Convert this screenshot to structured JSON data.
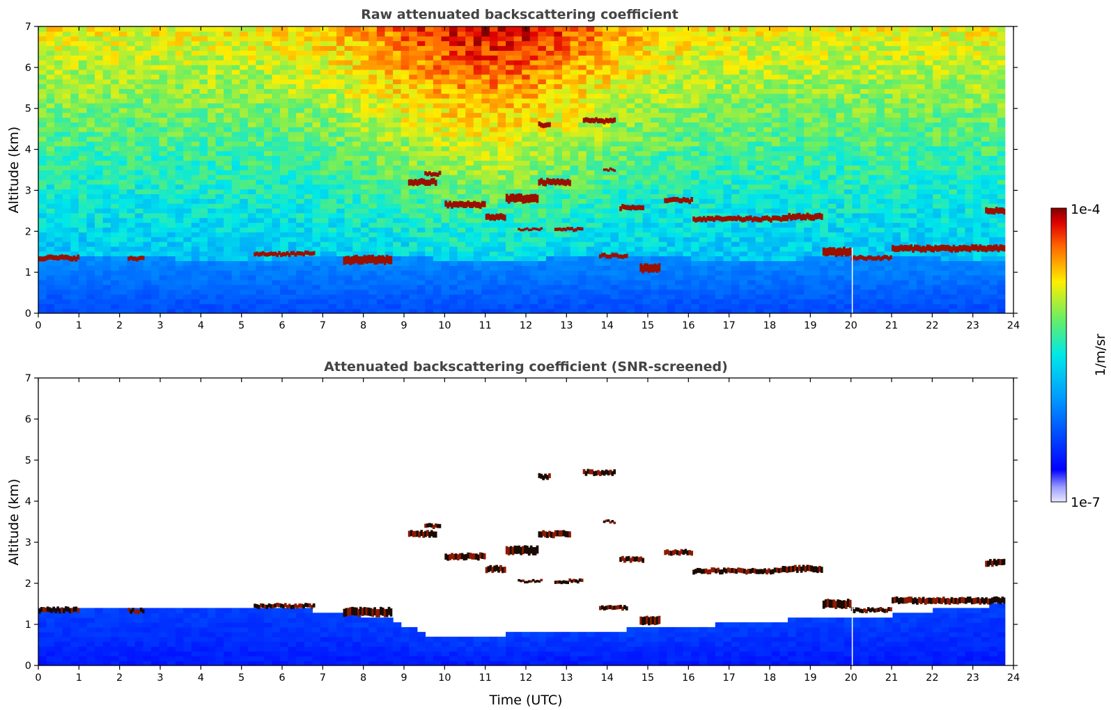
{
  "chart_data": [
    {
      "type": "heatmap",
      "title": "Raw attenuated backscattering coefficient",
      "xlabel": "",
      "ylabel": "Altitude (km)",
      "xlim": [
        0,
        24
      ],
      "ylim": [
        0,
        7
      ],
      "xticks": [
        "0",
        "1",
        "2",
        "3",
        "4",
        "5",
        "6",
        "7",
        "8",
        "9",
        "10",
        "11",
        "12",
        "13",
        "14",
        "15",
        "16",
        "17",
        "18",
        "19",
        "20",
        "21",
        "22",
        "23",
        "24"
      ],
      "yticks": [
        "0",
        "1",
        "2",
        "3",
        "4",
        "5",
        "6",
        "7"
      ],
      "screened": false,
      "cloud_layers": [
        {
          "t0": 0.0,
          "t1": 1.0,
          "alt": 1.35,
          "th": 0.12
        },
        {
          "t0": 2.2,
          "t1": 2.6,
          "alt": 1.33,
          "th": 0.1
        },
        {
          "t0": 5.3,
          "t1": 6.8,
          "alt": 1.45,
          "th": 0.1
        },
        {
          "t0": 7.5,
          "t1": 8.7,
          "alt": 1.3,
          "th": 0.2
        },
        {
          "t0": 9.1,
          "t1": 9.8,
          "alt": 3.2,
          "th": 0.15
        },
        {
          "t0": 9.5,
          "t1": 9.9,
          "alt": 3.4,
          "th": 0.1
        },
        {
          "t0": 10.0,
          "t1": 11.0,
          "alt": 2.65,
          "th": 0.15
        },
        {
          "t0": 11.0,
          "t1": 11.5,
          "alt": 2.35,
          "th": 0.15
        },
        {
          "t0": 11.5,
          "t1": 12.3,
          "alt": 2.8,
          "th": 0.2
        },
        {
          "t0": 12.3,
          "t1": 13.1,
          "alt": 3.2,
          "th": 0.15
        },
        {
          "t0": 12.3,
          "t1": 12.6,
          "alt": 4.6,
          "th": 0.12
        },
        {
          "t0": 13.4,
          "t1": 14.2,
          "alt": 4.7,
          "th": 0.12
        },
        {
          "t0": 11.8,
          "t1": 12.4,
          "alt": 2.05,
          "th": 0.06
        },
        {
          "t0": 12.7,
          "t1": 13.4,
          "alt": 2.05,
          "th": 0.08
        },
        {
          "t0": 13.9,
          "t1": 14.2,
          "alt": 3.5,
          "th": 0.06
        },
        {
          "t0": 14.3,
          "t1": 14.9,
          "alt": 2.58,
          "th": 0.12
        },
        {
          "t0": 15.4,
          "t1": 16.1,
          "alt": 2.75,
          "th": 0.12
        },
        {
          "t0": 16.1,
          "t1": 18.3,
          "alt": 2.3,
          "th": 0.12
        },
        {
          "t0": 18.3,
          "t1": 19.3,
          "alt": 2.35,
          "th": 0.15
        },
        {
          "t0": 19.3,
          "t1": 20.0,
          "alt": 1.5,
          "th": 0.2
        },
        {
          "t0": 20.0,
          "t1": 21.0,
          "alt": 1.35,
          "th": 0.1
        },
        {
          "t0": 21.0,
          "t1": 23.8,
          "alt": 1.58,
          "th": 0.15
        },
        {
          "t0": 23.3,
          "t1": 23.8,
          "alt": 2.5,
          "th": 0.15
        },
        {
          "t0": 14.8,
          "t1": 15.3,
          "alt": 1.1,
          "th": 0.2
        },
        {
          "t0": 13.8,
          "t1": 14.5,
          "alt": 1.4,
          "th": 0.1
        }
      ]
    },
    {
      "type": "heatmap",
      "title": "Attenuated backscattering coefficient (SNR-screened)",
      "xlabel": "Time (UTC)",
      "ylabel": "Altitude (km)",
      "xlim": [
        0,
        24
      ],
      "ylim": [
        0,
        7
      ],
      "xticks": [
        "0",
        "1",
        "2",
        "3",
        "4",
        "5",
        "6",
        "7",
        "8",
        "9",
        "10",
        "11",
        "12",
        "13",
        "14",
        "15",
        "16",
        "17",
        "18",
        "19",
        "20",
        "21",
        "22",
        "23",
        "24"
      ],
      "yticks": [
        "0",
        "1",
        "2",
        "3",
        "4",
        "5",
        "6",
        "7"
      ],
      "screened": true,
      "boundary_layer_top_km": [
        [
          0,
          1.3
        ],
        [
          5.2,
          1.35
        ],
        [
          6.5,
          1.3
        ],
        [
          8.5,
          1.1
        ],
        [
          9.5,
          0.7
        ],
        [
          10.5,
          0.6
        ],
        [
          12.0,
          0.75
        ],
        [
          14.0,
          0.8
        ],
        [
          16.0,
          0.9
        ],
        [
          17.5,
          1.0
        ],
        [
          19.0,
          1.1
        ],
        [
          20.5,
          1.1
        ],
        [
          21.5,
          1.25
        ],
        [
          23.8,
          1.45
        ]
      ]
    }
  ],
  "colorbar": {
    "label": "1/m/sr",
    "max_label": "1e-4",
    "min_label": "1e-7",
    "scale": "log",
    "colormap": "jet",
    "range": [
      1e-07,
      0.0001
    ]
  }
}
